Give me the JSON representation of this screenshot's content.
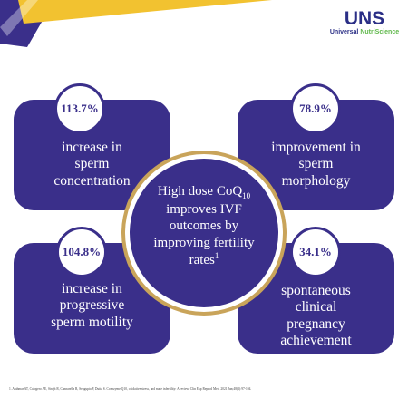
{
  "brand": {
    "mark": "UNS",
    "name_part1": "Universal ",
    "name_part2": "NutriScience",
    "colors": {
      "navy": "#2b2f86",
      "green": "#5fb84a"
    }
  },
  "colors": {
    "card": "#3a2f8a",
    "ring": "#c9a45a",
    "accent_gold": "#f2c230"
  },
  "cards": [
    {
      "value": "113.7%",
      "label_lines": [
        "increase in",
        "sperm",
        "concentration"
      ]
    },
    {
      "value": "78.9%",
      "label_lines": [
        "improvement in",
        "sperm",
        "morphology"
      ]
    },
    {
      "value": "104.8%",
      "label_lines": [
        "increase in",
        "progressive",
        "sperm motility"
      ]
    },
    {
      "value": "34.1%",
      "label_lines": [
        "spontaneous",
        "clinical",
        "pregnancy",
        "achievement"
      ]
    }
  ],
  "center": {
    "line1_text": "High dose CoQ",
    "line1_sub": "10",
    "line2": "improves IVF",
    "line3": "outcomes by",
    "line4": "improving fertility",
    "line5_text": "rates",
    "line5_sup": "1"
  },
  "footnote": "1. Alahmar AT, Calogero AE, Singh R, Cannarella R, Sengupta P, Dutta S. Coenzyme Q10, oxidative stress, and male infertility: A review. Clin Exp Reprod Med. 2021 Jun;48(2):97-104."
}
